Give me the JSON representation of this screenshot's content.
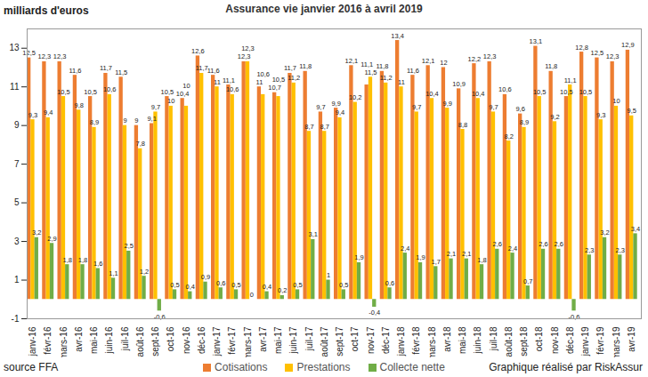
{
  "chart_data": {
    "type": "bar",
    "title": "Assurance vie janvier 2016 à avril 2019",
    "y_label": "milliards d'euros",
    "source": "source FFA",
    "caption": "Graphique réalisé par RiskAssur",
    "categories": [
      "janv-16",
      "févr-16",
      "mars-16",
      "avr-16",
      "mai-16",
      "juin-16",
      "juil-16",
      "août-16",
      "sept-16",
      "oct-16",
      "nov-16",
      "déc-16",
      "janv-17",
      "févr-17",
      "mars-17",
      "avr-17",
      "mai-17",
      "juin-17",
      "juil-17",
      "août-17",
      "sept-17",
      "oct-17",
      "nov-17",
      "déc-17",
      "janv-18",
      "févr-18",
      "mars-18",
      "avr-18",
      "mai-18",
      "juin-18",
      "juil-18",
      "août-18",
      "sept-18",
      "oct-18",
      "nov-18",
      "déc-18",
      "janv-19",
      "févr-19",
      "mars-19",
      "avr-19"
    ],
    "series": [
      {
        "name": "Cotisations",
        "color": "#ED7D31",
        "values": [
          12.5,
          12.3,
          12.3,
          11.6,
          10.5,
          11.7,
          11.5,
          9,
          9.1,
          10.5,
          10.4,
          12.6,
          11.6,
          11.1,
          12.3,
          11,
          10.7,
          11.7,
          11.8,
          9.7,
          9.9,
          12.1,
          11.1,
          11.8,
          13.4,
          11.6,
          12.1,
          12,
          10.9,
          12.2,
          12.3,
          10.6,
          9.6,
          13.1,
          11.8,
          10.5,
          12.8,
          12.5,
          12.3,
          12.9
        ],
        "value_labels": [
          "12,5",
          "12,3",
          "12,3",
          "11,6",
          "10,5",
          "11,7",
          "11,5",
          "9",
          "9,1",
          "10,5",
          "10,4",
          "12,6",
          "11,6",
          "11,1",
          "12,3",
          "11",
          "10,7",
          "11,7",
          "11,8",
          "9,7",
          "9,9",
          "12,1",
          "11,1",
          "11,8",
          "13,4",
          "11,6",
          "12,1",
          "12",
          "10,9",
          "12,2",
          "12,3",
          "10,6",
          "9,6",
          "13,1",
          "11,8",
          "10,5",
          "12,8",
          "12,5",
          "12,3",
          "12,9"
        ]
      },
      {
        "name": "Prestations",
        "color": "#FFC000",
        "values": [
          9.3,
          9.4,
          10.5,
          9.8,
          8.9,
          10.6,
          9,
          7.8,
          9.7,
          10,
          10,
          11.7,
          11,
          10.6,
          12.3,
          10.6,
          10.5,
          11.2,
          8.7,
          8.7,
          9.4,
          10.2,
          11.5,
          11.2,
          11,
          9.7,
          10.4,
          9.9,
          8.8,
          10.4,
          9.7,
          8.2,
          8.9,
          10.5,
          9.2,
          11.1,
          10.5,
          9.3,
          10,
          9.5
        ],
        "value_labels": [
          "9,3",
          "9,4",
          "10,5",
          "9,8",
          "8,9",
          "10,6",
          "9",
          "7,8",
          "9,7",
          "10",
          "10",
          "11,7",
          "11",
          "10,6",
          "12,3",
          "10,6",
          "10,5",
          "11,2",
          "8,7",
          "8,7",
          "9,4",
          "10,2",
          "11,5",
          "11,2",
          "11",
          "9,7",
          "10,4",
          "9,9",
          "8,8",
          "10,4",
          "9,7",
          "8,2",
          "8,9",
          "10,5",
          "9,2",
          "11,1",
          "10,5",
          "9,3",
          "10",
          "9,5"
        ]
      },
      {
        "name": "Collecte nette",
        "color": "#70AD47",
        "values": [
          3.2,
          2.9,
          1.8,
          1.8,
          1.6,
          1.1,
          2.5,
          1.2,
          -0.6,
          0.5,
          0.4,
          0.9,
          0.6,
          0.5,
          0,
          0.4,
          0.2,
          0.5,
          3.1,
          1,
          0.5,
          1.9,
          -0.4,
          0.6,
          2.4,
          1.9,
          1.7,
          2.1,
          2.1,
          1.8,
          2.6,
          2.4,
          0.7,
          2.6,
          2.6,
          -0.6,
          2.3,
          3.2,
          2.3,
          3.4
        ],
        "value_labels": [
          "3,2",
          "2,9",
          "1,8",
          "1,8",
          "1,6",
          "1,1",
          "2,5",
          "1,2",
          "-0,6",
          "0,5",
          "0,4",
          "0,9",
          "0,6",
          "0,5",
          "0",
          "0,4",
          "0,2",
          "0,5",
          "3,1",
          "1",
          "0,5",
          "1,9",
          "-0,4",
          "0,6",
          "2,4",
          "1,9",
          "1,7",
          "2,1",
          "2,1",
          "1,8",
          "2,6",
          "2,4",
          "0,7",
          "2,6",
          "2,6",
          "-0,6",
          "2,3",
          "3,2",
          "2,3",
          "3,4"
        ]
      }
    ],
    "ylim": [
      -1,
      14
    ],
    "yticks": [
      -1,
      1,
      3,
      5,
      7,
      9,
      11,
      13
    ],
    "grid": false,
    "legend": "bottom",
    "data_labels": true
  }
}
